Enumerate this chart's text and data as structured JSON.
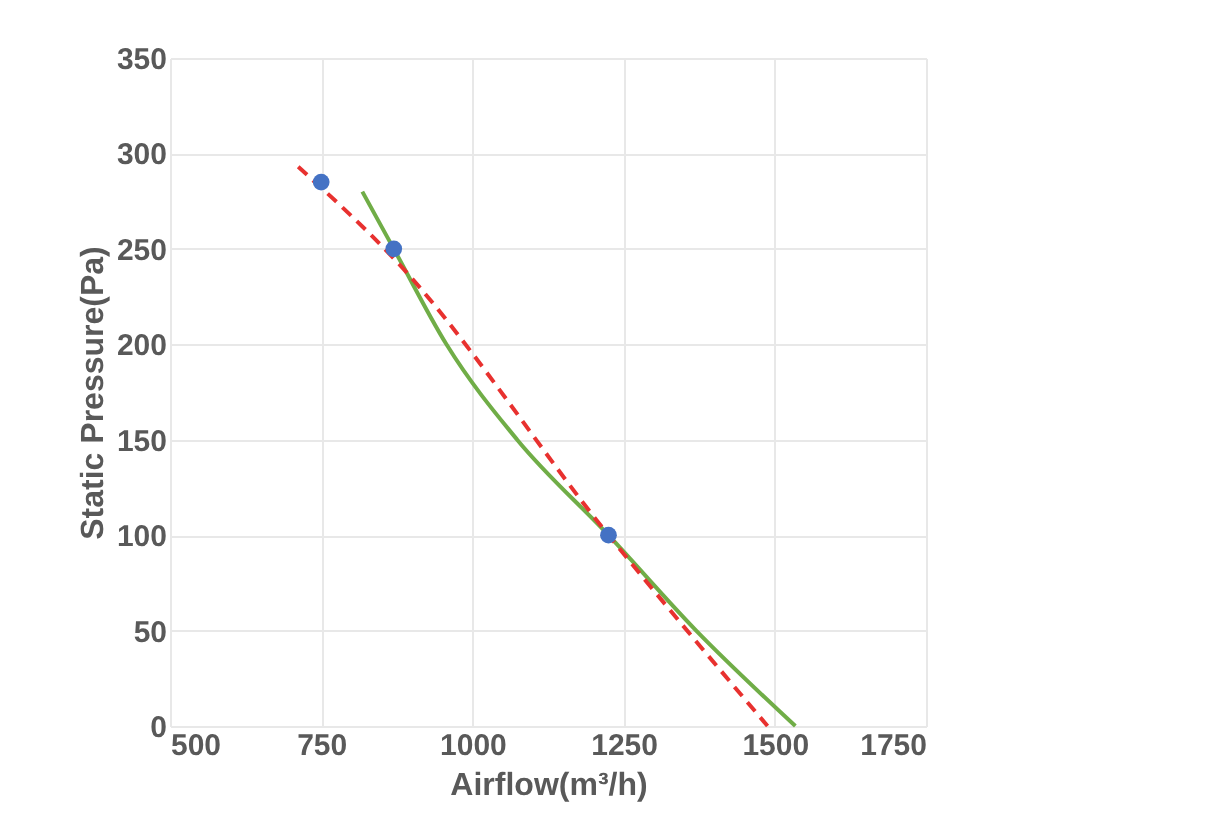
{
  "chart_data": {
    "type": "line",
    "xlabel": "Airflow(m³/h)",
    "ylabel": "Static Pressure(Pa)",
    "xlim": [
      500,
      1750
    ],
    "xticks": [
      500,
      750,
      1000,
      1250,
      1500,
      1750
    ],
    "ylim": [
      0,
      350
    ],
    "yticks": [
      0,
      50,
      100,
      150,
      200,
      250,
      300,
      350
    ],
    "grid": true,
    "series": [
      {
        "color": "#70ad47",
        "line_style": "solid",
        "x": [
          818,
          870,
          957,
          1074,
          1225,
          1370,
          1534
        ],
        "values": [
          280,
          250,
          200,
          150,
          100,
          50,
          0
        ]
      },
      {
        "color": "#e8312f",
        "line_style": "dashed",
        "x": [
          712,
          870,
          1225,
          1488
        ],
        "values": [
          293,
          245,
          100,
          0
        ]
      },
      {
        "type": "scatter",
        "color": "#4472c4",
        "marker": "circle",
        "x": [
          750,
          870,
          1225
        ],
        "values": [
          285,
          250,
          100
        ]
      }
    ]
  }
}
